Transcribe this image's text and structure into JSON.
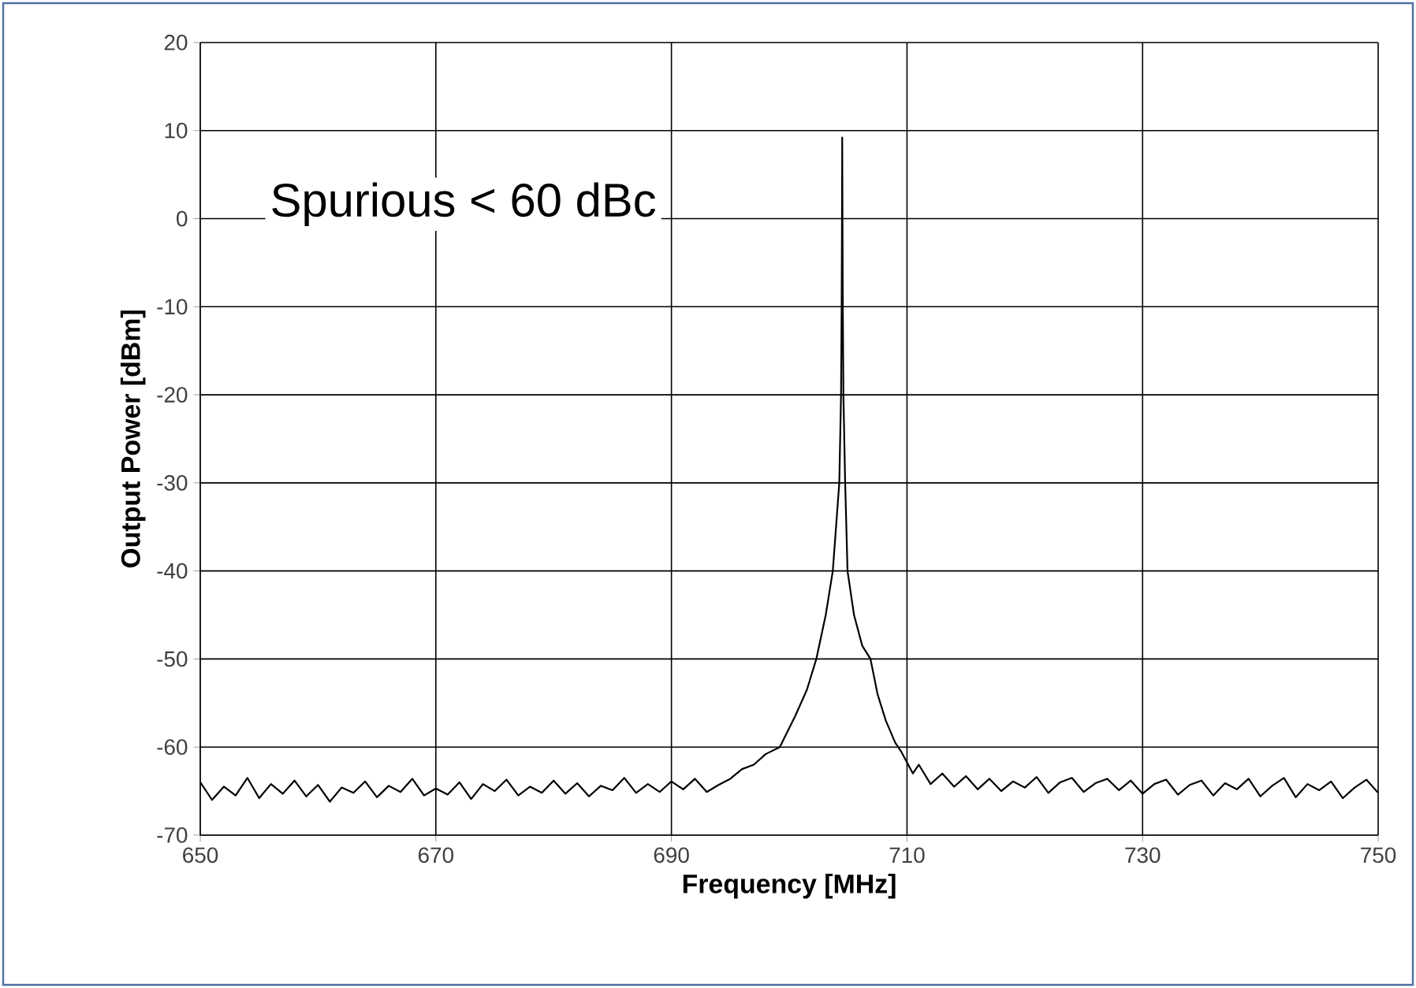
{
  "chart_data": {
    "type": "line",
    "xlabel": "Frequency [MHz]",
    "ylabel": "Output Power [dBm]",
    "annotations": [
      "Spurious < 60 dBc"
    ],
    "xlim": [
      650,
      750
    ],
    "ylim": [
      -70,
      20
    ],
    "xticks": [
      650,
      670,
      690,
      710,
      730,
      750
    ],
    "yticks": [
      -70,
      -60,
      -50,
      -40,
      -30,
      -20,
      -10,
      0,
      10,
      20
    ],
    "grid": true,
    "marker": "none",
    "line_style": "solid",
    "series": [
      {
        "color": "#000000",
        "x": [
          650,
          651,
          652,
          653,
          654,
          655,
          656,
          657,
          658,
          659,
          660,
          661,
          662,
          663,
          664,
          665,
          666,
          667,
          668,
          669,
          670,
          671,
          672,
          673,
          674,
          675,
          676,
          677,
          678,
          679,
          680,
          681,
          682,
          683,
          684,
          685,
          686,
          687,
          688,
          689,
          690,
          691,
          692,
          693,
          694,
          695,
          696,
          697,
          698,
          699.2,
          700.5,
          701.5,
          702.3,
          703.1,
          703.7,
          704.25,
          704.4,
          704.45,
          704.48,
          704.5,
          704.52,
          704.55,
          704.6,
          704.75,
          704.95,
          705.5,
          706.2,
          706.9,
          707.5,
          708.2,
          709,
          709.5,
          710.5,
          711,
          712,
          713,
          714,
          715,
          716,
          717,
          718,
          719,
          720,
          721,
          722,
          723,
          724,
          725,
          726,
          727,
          728,
          729,
          730,
          731,
          732,
          733,
          734,
          735,
          736,
          737,
          738,
          739,
          740,
          741,
          742,
          743,
          744,
          745,
          746,
          747,
          748,
          749,
          750
        ],
        "values": [
          -64,
          -66,
          -64.5,
          -65.5,
          -63.5,
          -65.8,
          -64.2,
          -65.3,
          -63.8,
          -65.6,
          -64.3,
          -66.2,
          -64.6,
          -65.2,
          -63.9,
          -65.7,
          -64.4,
          -65.1,
          -63.6,
          -65.5,
          -64.7,
          -65.4,
          -64,
          -65.9,
          -64.2,
          -65,
          -63.7,
          -65.5,
          -64.5,
          -65.2,
          -63.8,
          -65.3,
          -64.1,
          -65.6,
          -64.4,
          -64.9,
          -63.5,
          -65.2,
          -64.2,
          -65.1,
          -63.9,
          -64.8,
          -63.6,
          -65.1,
          -64.3,
          -63.6,
          -62.5,
          -62,
          -60.8,
          -60,
          -56.5,
          -53.5,
          -50,
          -45,
          -40,
          -30,
          -20,
          -10,
          0,
          9.2,
          0,
          -10,
          -20,
          -30,
          -40,
          -45,
          -48.5,
          -50,
          -54,
          -57,
          -59.5,
          -60.5,
          -63,
          -62,
          -64.2,
          -63,
          -64.5,
          -63.3,
          -64.8,
          -63.6,
          -65,
          -63.9,
          -64.6,
          -63.4,
          -65.2,
          -64,
          -63.5,
          -65.1,
          -64.1,
          -63.6,
          -64.9,
          -63.8,
          -65.3,
          -64.2,
          -63.7,
          -65.4,
          -64.3,
          -63.8,
          -65.5,
          -64.1,
          -64.8,
          -63.6,
          -65.6,
          -64.4,
          -63.5,
          -65.7,
          -64.2,
          -64.9,
          -63.9,
          -65.8,
          -64.6,
          -63.7,
          -65.2
        ]
      }
    ]
  }
}
